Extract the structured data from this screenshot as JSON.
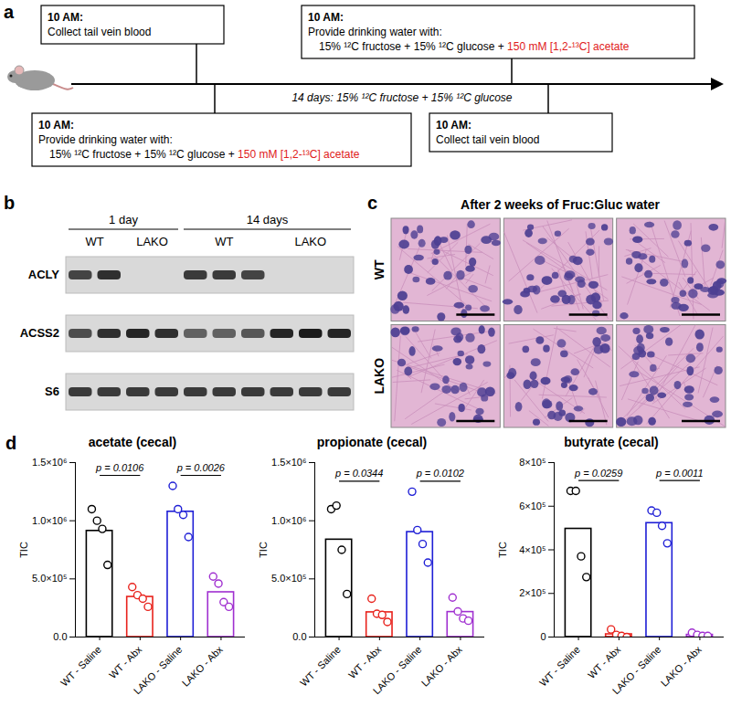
{
  "panel_a": {
    "label": "a",
    "timeline_text": "14 days: 15% ¹²C fructose + 15% ¹²C glucose",
    "highlight_color": "#e0201b",
    "events": [
      {
        "position": "top",
        "heading": "10 AM:",
        "lines": [
          "Collect tail vein blood"
        ]
      },
      {
        "position": "bottom",
        "heading": "10 AM:",
        "lines": [
          "Provide drinking water with:",
          "15% ¹²C fructose + 15% ¹²C glucose + 150 mM [1,2-¹³C] acetate"
        ],
        "highlight": "150 mM [1,2-¹³C] acetate"
      },
      {
        "position": "top",
        "heading": "10 AM:",
        "lines": [
          "Provide drinking water with:",
          "15% ¹²C fructose + 15% ¹²C glucose + 150 mM [1,2-¹³C] acetate"
        ],
        "highlight": "150 mM [1,2-¹³C] acetate"
      },
      {
        "position": "bottom",
        "heading": "10 AM:",
        "lines": [
          "Collect tail vein blood"
        ]
      }
    ]
  },
  "panel_b": {
    "label": "b",
    "groups": [
      {
        "label": "1 day",
        "lanes": [
          "WT",
          "WT",
          "LAKO",
          "LAKO"
        ]
      },
      {
        "label": "14 days",
        "lanes": [
          "WT",
          "WT",
          "WT",
          "LAKO",
          "LAKO",
          "LAKO"
        ]
      }
    ],
    "rows": [
      {
        "name": "ACLY",
        "bands": [
          0.75,
          0.85,
          0,
          0,
          0.8,
          0.8,
          0.75,
          0,
          0,
          0
        ]
      },
      {
        "name": "ACSS2",
        "bands": [
          0.7,
          0.85,
          0.9,
          0.85,
          0.6,
          0.6,
          0.65,
          0.9,
          0.95,
          0.9
        ]
      },
      {
        "name": "S6",
        "bands": [
          0.8,
          0.8,
          0.8,
          0.8,
          0.8,
          0.8,
          0.8,
          0.8,
          0.8,
          0.8
        ]
      }
    ]
  },
  "panel_c": {
    "label": "c",
    "title": "After 2 weeks of Fruc:Gluc water",
    "rows": [
      "WT",
      "LAKO"
    ],
    "columns": 3
  },
  "panel_d": {
    "label": "d"
  },
  "chart_data": [
    {
      "type": "bar",
      "title": "acetate (cecal)",
      "ylabel": "TIC",
      "categories": [
        "WT - Saline",
        "WT - Abx",
        "LAKO - Saline",
        "LAKO - Abx"
      ],
      "values": [
        912500,
        345000,
        1077500,
        385000
      ],
      "colors": [
        "#000000",
        "#e8221c",
        "#1f1fd6",
        "#a030d0"
      ],
      "points": [
        [
          1100000,
          1000000,
          930000,
          620000
        ],
        [
          430000,
          360000,
          330000,
          260000
        ],
        [
          1300000,
          1100000,
          1050000,
          860000
        ],
        [
          520000,
          460000,
          300000,
          260000
        ]
      ],
      "marker": "open circle",
      "ylim": [
        0,
        1500000
      ],
      "yticks": [
        {
          "value": 0,
          "label": "0.0"
        },
        {
          "value": 500000,
          "label": "5.0×10⁵"
        },
        {
          "value": 1000000,
          "label": "1.0×10⁶"
        },
        {
          "value": 1500000,
          "label": "1.5×10⁶"
        }
      ],
      "annotations": [
        {
          "text": "p = 0.0106",
          "from": 0,
          "to": 1
        },
        {
          "text": "p = 0.0026",
          "from": 2,
          "to": 3
        }
      ]
    },
    {
      "type": "bar",
      "title": "propionate (cecal)",
      "ylabel": "TIC",
      "categories": [
        "WT - Saline",
        "WT - Abx",
        "LAKO - Saline",
        "LAKO - Abx"
      ],
      "values": [
        837500,
        212500,
        902500,
        215000
      ],
      "colors": [
        "#000000",
        "#e8221c",
        "#1f1fd6",
        "#a030d0"
      ],
      "points": [
        [
          1100000,
          1130000,
          750000,
          370000
        ],
        [
          330000,
          200000,
          190000,
          130000
        ],
        [
          1250000,
          920000,
          800000,
          640000
        ],
        [
          340000,
          220000,
          160000,
          140000
        ]
      ],
      "marker": "open circle",
      "ylim": [
        0,
        1500000
      ],
      "yticks": [
        {
          "value": 0,
          "label": "0.0"
        },
        {
          "value": 500000,
          "label": "5.0×10⁵"
        },
        {
          "value": 1000000,
          "label": "1.0×10⁶"
        },
        {
          "value": 1500000,
          "label": "1.5×10⁶"
        }
      ],
      "annotations": [
        {
          "text": "p = 0.0344",
          "from": 0,
          "to": 1
        },
        {
          "text": "p = 0.0102",
          "from": 2,
          "to": 3
        }
      ]
    },
    {
      "type": "bar",
      "title": "butyrate (cecal)",
      "ylabel": "TIC",
      "categories": [
        "WT - Saline",
        "WT - Abx",
        "LAKO - Saline",
        "LAKO - Abx"
      ],
      "values": [
        496250,
        12500,
        522500,
        10000
      ],
      "colors": [
        "#000000",
        "#e8221c",
        "#1f1fd6",
        "#a030d0"
      ],
      "points": [
        [
          670000,
          670000,
          370000,
          275000
        ],
        [
          35000,
          10000,
          5000,
          0
        ],
        [
          580000,
          570000,
          510000,
          430000
        ],
        [
          20000,
          10000,
          5000,
          5000
        ]
      ],
      "marker": "open circle",
      "ylim": [
        0,
        800000
      ],
      "yticks": [
        0,
        {
          "value": 200000,
          "label": "2×10⁵"
        },
        {
          "value": 400000,
          "label": "4×10⁵"
        },
        {
          "value": 600000,
          "label": "6×10⁵"
        },
        {
          "value": 800000,
          "label": "8×10⁵"
        }
      ],
      "annotations": [
        {
          "text": "p = 0.0259",
          "from": 0,
          "to": 1
        },
        {
          "text": "p = 0.0011",
          "from": 2,
          "to": 3
        }
      ]
    }
  ]
}
